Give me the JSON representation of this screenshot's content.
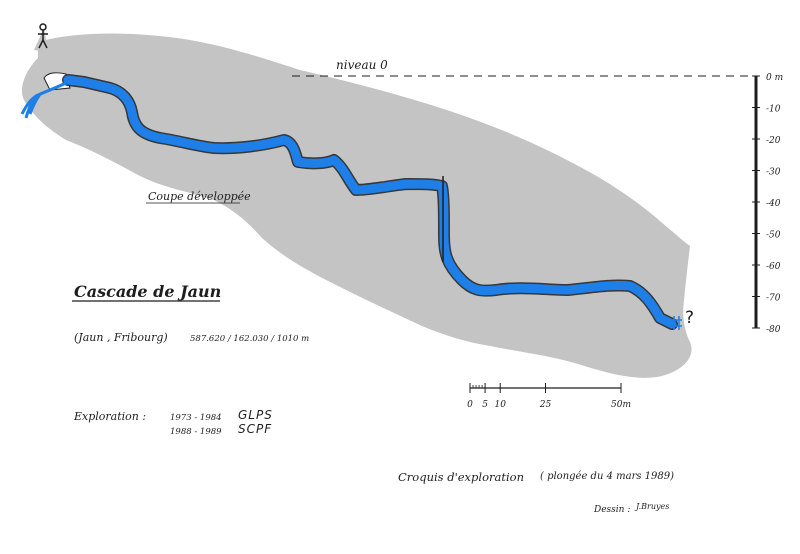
{
  "title": "Cascade de Jaun",
  "location": "(Jaun , Fribourg)",
  "coordinates": "587.620 / 162.030 / 1010 m",
  "section_label": "Coupe développée",
  "level_label": "niveau 0",
  "exploration": {
    "label": "Exploration :",
    "rows": [
      {
        "years": "1973 - 1984",
        "club": "GLPS"
      },
      {
        "years": "1988 - 1989",
        "club": "SCPF"
      }
    ]
  },
  "sketch_note": "Croquis d'exploration",
  "dive_note": "( plongée du 4 mars 1989)",
  "drawn_by": {
    "label": "Dessin :",
    "author": "J.Bruyes"
  },
  "depth_scale": {
    "labels": [
      "0 m",
      "-10",
      "-20",
      "-30",
      "-40",
      "-50",
      "-60",
      "-70",
      "-80"
    ],
    "values": [
      0,
      -10,
      -20,
      -30,
      -40,
      -50,
      -60,
      -70,
      -80
    ],
    "unit": "m"
  },
  "length_scale": {
    "ticks": [
      0,
      5,
      10,
      25,
      50
    ],
    "labels": [
      "0",
      "5",
      "10",
      "25",
      "50m"
    ]
  },
  "sump_end_label": "?",
  "colors": {
    "rock": "#c4c4c4",
    "water": "#1f7fe8",
    "ink": "#1e1e1e",
    "background": "#ffffff"
  },
  "icons": [
    "person-icon",
    "question-mark-icon"
  ]
}
